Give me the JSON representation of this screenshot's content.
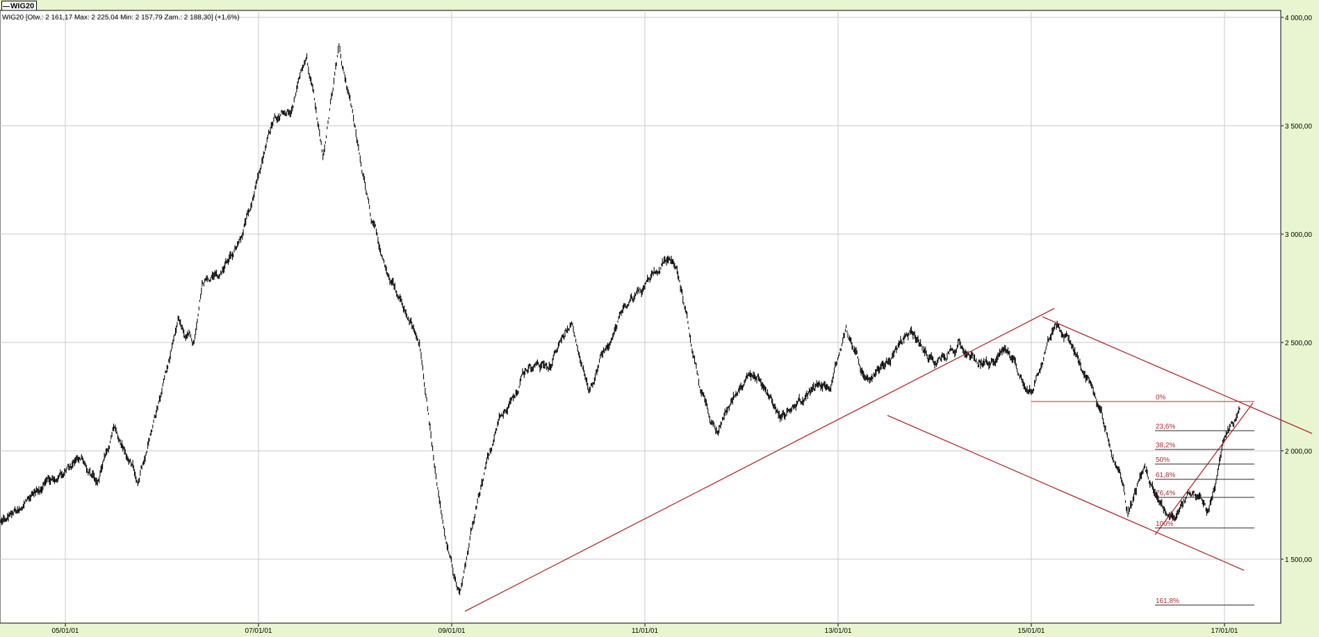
{
  "legend": {
    "label": "WIG20"
  },
  "info_text": "WIG20 [Otw.: 2 161,17  Max: 2 225,04  Min: 2 157,79  Zam.: 2 188,30] (+1,6%)",
  "colors": {
    "background": "#e8f5d0",
    "plot": "#ffffff",
    "grid": "#c8c8c8",
    "price": "#000000",
    "annotations": "#b0282b"
  },
  "chart_data": {
    "type": "line",
    "title": "WIG20",
    "xlabel": "",
    "ylabel": "",
    "ylim": [
      1250,
      4000
    ],
    "x_ticks": [
      "05/01/01",
      "07/01/01",
      "09/01/01",
      "11/01/01",
      "13/01/01",
      "15/01/01",
      "17/01/01"
    ],
    "y_ticks": [
      {
        "value": 1500,
        "label": "1 500,00"
      },
      {
        "value": 2000,
        "label": "2 000,00"
      },
      {
        "value": 2500,
        "label": "2 500,00"
      },
      {
        "value": 3000,
        "label": "3 000,00"
      },
      {
        "value": 3500,
        "label": "3 500,00"
      },
      {
        "value": 4000,
        "label": "4 000,00"
      }
    ],
    "grid": true,
    "series": [
      {
        "values_by_year": "approximate closing levels (daily bars)",
        "x": [
          "2004-05",
          "2004-09",
          "2005-01",
          "2005-03",
          "2005-05",
          "2005-07",
          "2005-10",
          "2006-01",
          "2006-03",
          "2006-05",
          "2006-06",
          "2006-08",
          "2006-11",
          "2007-01",
          "2007-03",
          "2007-05",
          "2007-07",
          "2007-09",
          "2007-11",
          "2008-01",
          "2008-03",
          "2008-05",
          "2008-07",
          "2008-09",
          "2008-10",
          "2008-12",
          "2009-02",
          "2009-04",
          "2009-07",
          "2009-10",
          "2010-01",
          "2010-04",
          "2010-06",
          "2010-09",
          "2010-11",
          "2011-01",
          "2011-04",
          "2011-05",
          "2011-08",
          "2011-10",
          "2011-12",
          "2012-03",
          "2012-06",
          "2012-09",
          "2012-12",
          "2013-02",
          "2013-05",
          "2013-07",
          "2013-10",
          "2014-01",
          "2014-04",
          "2014-07",
          "2014-10",
          "2015-01",
          "2015-02",
          "2015-04",
          "2015-06",
          "2015-09",
          "2015-12",
          "2016-01",
          "2016-03",
          "2016-05",
          "2016-07",
          "2016-09",
          "2016-11",
          "2017-01",
          "2017-03"
        ],
        "y": [
          1680,
          1800,
          1900,
          1960,
          1860,
          2100,
          1880,
          2250,
          2600,
          2500,
          2800,
          2800,
          3000,
          3300,
          3550,
          3600,
          3800,
          3350,
          3850,
          3500,
          3050,
          2850,
          2650,
          2500,
          2200,
          1600,
          1350,
          1750,
          2150,
          2350,
          2400,
          2600,
          2300,
          2550,
          2700,
          2750,
          2900,
          2850,
          2250,
          2100,
          2250,
          2350,
          2150,
          2250,
          2300,
          2550,
          2300,
          2400,
          2550,
          2400,
          2500,
          2400,
          2450,
          2300,
          2400,
          2600,
          2500,
          2250,
          1900,
          1700,
          1950,
          1750,
          1700,
          1820,
          1700,
          2050,
          2200
        ]
      }
    ],
    "annotations": {
      "fibonacci_levels": [
        {
          "label": "0%",
          "value": 2225
        },
        {
          "label": "23,6%",
          "value": 2087
        },
        {
          "label": "38,2%",
          "value": 2002
        },
        {
          "label": "50%",
          "value": 1934
        },
        {
          "label": "61,8%",
          "value": 1865
        },
        {
          "label": "76,4%",
          "value": 1780
        },
        {
          "label": "100%",
          "value": 1643
        },
        {
          "label": "161,8%",
          "value": 1283
        }
      ]
    }
  }
}
